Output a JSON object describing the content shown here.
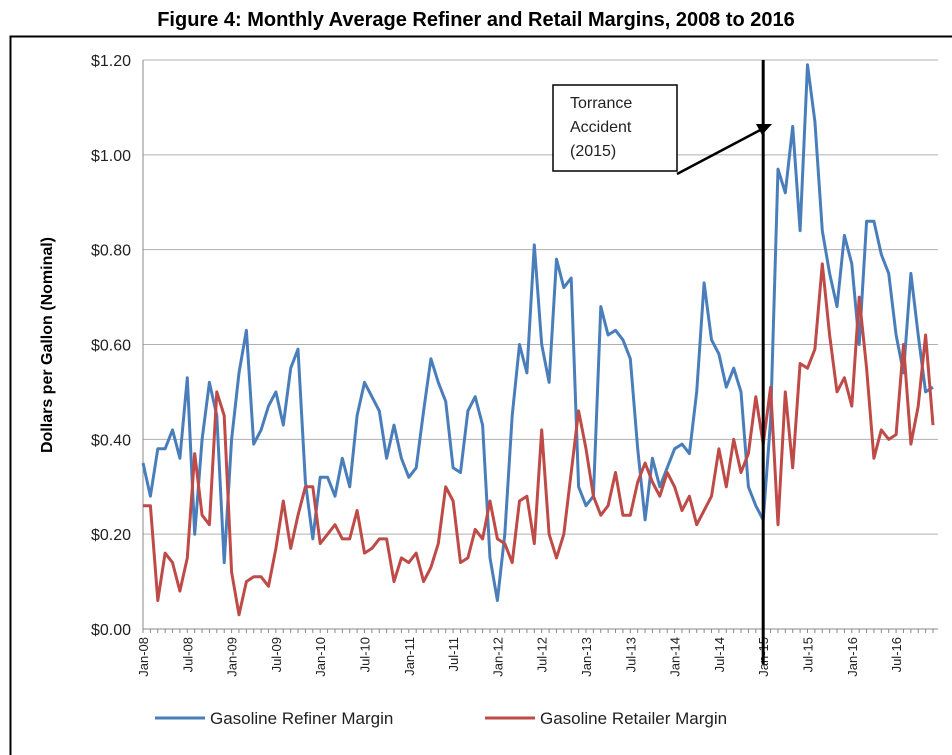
{
  "chart_data": {
    "type": "line",
    "title": "Figure 4: Monthly Average Refiner and Retail Margins, 2008 to 2016",
    "y_label": "Dollars per Gallon (Nominal)",
    "annotation": [
      "Torrance",
      "Accident",
      "(2015)"
    ],
    "categories": [
      "Jan-08",
      null,
      null,
      null,
      null,
      null,
      "Jul-08",
      null,
      null,
      null,
      null,
      null,
      "Jan-09",
      null,
      null,
      null,
      null,
      null,
      "Jul-09",
      null,
      null,
      null,
      null,
      null,
      "Jan-10",
      null,
      null,
      null,
      null,
      null,
      "Jul-10",
      null,
      null,
      null,
      null,
      null,
      "Jan-11",
      null,
      null,
      null,
      null,
      null,
      "Jul-11",
      null,
      null,
      null,
      null,
      null,
      "Jan-12",
      null,
      null,
      null,
      null,
      null,
      "Jul-12",
      null,
      null,
      null,
      null,
      null,
      "Jan-13",
      null,
      null,
      null,
      null,
      null,
      "Jul-13",
      null,
      null,
      null,
      null,
      null,
      "Jan-14",
      null,
      null,
      null,
      null,
      null,
      "Jul-14",
      null,
      null,
      null,
      null,
      null,
      "Jan-15",
      null,
      null,
      null,
      null,
      null,
      "Jul-15",
      null,
      null,
      null,
      null,
      null,
      "Jan-16",
      null,
      null,
      null,
      null,
      null,
      "Jul-16",
      null,
      null,
      null,
      null,
      null
    ],
    "series": [
      {
        "name": "Gasoline Refiner Margin",
        "color": "#4a7ebb",
        "values": [
          0.35,
          0.28,
          0.38,
          0.38,
          0.42,
          0.36,
          0.53,
          0.2,
          0.4,
          0.52,
          0.45,
          0.14,
          0.4,
          0.54,
          0.63,
          0.39,
          0.42,
          0.47,
          0.5,
          0.43,
          0.55,
          0.59,
          0.31,
          0.19,
          0.32,
          0.32,
          0.28,
          0.36,
          0.3,
          0.45,
          0.52,
          0.49,
          0.46,
          0.36,
          0.43,
          0.36,
          0.32,
          0.34,
          0.46,
          0.57,
          0.52,
          0.48,
          0.34,
          0.33,
          0.46,
          0.49,
          0.43,
          0.15,
          0.06,
          0.2,
          0.45,
          0.6,
          0.54,
          0.81,
          0.6,
          0.52,
          0.78,
          0.72,
          0.74,
          0.3,
          0.26,
          0.28,
          0.68,
          0.62,
          0.63,
          0.61,
          0.57,
          0.38,
          0.23,
          0.36,
          0.3,
          0.34,
          0.38,
          0.39,
          0.37,
          0.5,
          0.73,
          0.61,
          0.58,
          0.51,
          0.55,
          0.5,
          0.3,
          0.26,
          0.23,
          0.44,
          0.97,
          0.92,
          1.06,
          0.84,
          1.19,
          1.07,
          0.84,
          0.75,
          0.68,
          0.83,
          0.77,
          0.6,
          0.86,
          0.86,
          0.79,
          0.75,
          0.62,
          0.54,
          0.75,
          0.62,
          0.5,
          0.51
        ]
      },
      {
        "name": "Gasoline Retailer Margin",
        "color": "#be4b48",
        "values": [
          0.26,
          0.26,
          0.06,
          0.16,
          0.14,
          0.08,
          0.15,
          0.37,
          0.24,
          0.22,
          0.5,
          0.45,
          0.12,
          0.03,
          0.1,
          0.11,
          0.11,
          0.09,
          0.17,
          0.27,
          0.17,
          0.24,
          0.3,
          0.3,
          0.18,
          0.2,
          0.22,
          0.19,
          0.19,
          0.25,
          0.16,
          0.17,
          0.19,
          0.19,
          0.1,
          0.15,
          0.14,
          0.16,
          0.1,
          0.13,
          0.18,
          0.3,
          0.27,
          0.14,
          0.15,
          0.21,
          0.19,
          0.27,
          0.19,
          0.18,
          0.14,
          0.27,
          0.28,
          0.18,
          0.42,
          0.2,
          0.15,
          0.2,
          0.33,
          0.46,
          0.38,
          0.28,
          0.24,
          0.26,
          0.33,
          0.24,
          0.24,
          0.31,
          0.35,
          0.31,
          0.28,
          0.33,
          0.3,
          0.25,
          0.28,
          0.22,
          0.25,
          0.28,
          0.38,
          0.3,
          0.4,
          0.33,
          0.37,
          0.49,
          0.39,
          0.51,
          0.22,
          0.5,
          0.34,
          0.56,
          0.55,
          0.59,
          0.77,
          0.62,
          0.5,
          0.53,
          0.47,
          0.7,
          0.55,
          0.36,
          0.42,
          0.4,
          0.41,
          0.6,
          0.39,
          0.47,
          0.62,
          0.43
        ]
      }
    ],
    "ylim": [
      0,
      1.2
    ],
    "yticks": [
      {
        "value": 0,
        "label": "$0.00"
      },
      {
        "value": 0.2,
        "label": "$0.20"
      },
      {
        "value": 0.4,
        "label": "$0.40"
      },
      {
        "value": 0.6,
        "label": "$0.60"
      },
      {
        "value": 0.8,
        "label": "$0.80"
      },
      {
        "value": 1.0,
        "label": "$1.00"
      },
      {
        "value": 1.2,
        "label": "$1.20"
      }
    ],
    "grid": true,
    "legend": "bottom"
  }
}
